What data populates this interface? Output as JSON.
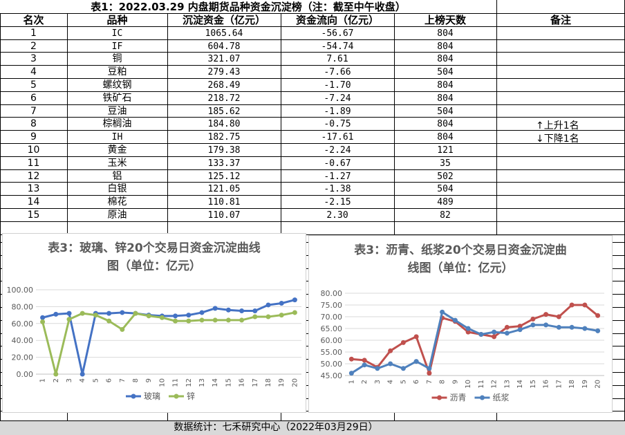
{
  "table": {
    "title": "表1：2022.03.29 内盘期货品种资金沉淀榜（注：截至中午收盘）",
    "headers": [
      "名次",
      "品种",
      "沉淀资金（亿元）",
      "资金流向（亿元）",
      "上榜天数",
      "备注"
    ],
    "rows": [
      {
        "rank": "1",
        "name": "IC",
        "fund": "1065.64",
        "flow": "-56.67",
        "days": "804"
      },
      {
        "rank": "2",
        "name": "IF",
        "fund": "604.78",
        "flow": "-54.74",
        "days": "804"
      },
      {
        "rank": "3",
        "name": "铜",
        "fund": "321.07",
        "flow": "7.61",
        "days": "804"
      },
      {
        "rank": "4",
        "name": "豆粕",
        "fund": "279.43",
        "flow": "-7.66",
        "days": "504"
      },
      {
        "rank": "5",
        "name": "螺纹钢",
        "fund": "268.49",
        "flow": "-1.70",
        "days": "804"
      },
      {
        "rank": "6",
        "name": "铁矿石",
        "fund": "218.72",
        "flow": "-7.24",
        "days": "804"
      },
      {
        "rank": "7",
        "name": "豆油",
        "fund": "185.62",
        "flow": "-1.89",
        "days": "504"
      },
      {
        "rank": "8",
        "name": "棕榈油",
        "fund": "184.80",
        "flow": "-0.75",
        "days": "804"
      },
      {
        "rank": "9",
        "name": "IH",
        "fund": "182.75",
        "flow": "-17.61",
        "days": "804"
      },
      {
        "rank": "10",
        "name": "黄金",
        "fund": "179.38",
        "flow": "-2.24",
        "days": "121"
      },
      {
        "rank": "11",
        "name": "玉米",
        "fund": "133.37",
        "flow": "-0.67",
        "days": "35"
      },
      {
        "rank": "12",
        "name": "铝",
        "fund": "125.12",
        "flow": "-1.27",
        "days": "502"
      },
      {
        "rank": "13",
        "name": "白银",
        "fund": "121.05",
        "flow": "-1.38",
        "days": "504"
      },
      {
        "rank": "14",
        "name": "棉花",
        "fund": "110.81",
        "flow": "-2.15",
        "days": "489"
      },
      {
        "rank": "15",
        "name": "原油",
        "fund": "110.07",
        "flow": "2.30",
        "days": "82"
      }
    ],
    "legend_up": "↑上升1名",
    "legend_down": "↓下降1名"
  },
  "footer": "数据统计：七禾研究中心（2022年03月29日）",
  "chart_data": [
    {
      "type": "line",
      "title_line1": "表3：玻璃、锌20个交易日资金沉淀曲线",
      "title_line2": "图（单位：亿元）",
      "x": [
        "1",
        "2",
        "3",
        "4",
        "5",
        "6",
        "7",
        "8",
        "9",
        "10",
        "11",
        "12",
        "13",
        "14",
        "15",
        "16",
        "17",
        "18",
        "19",
        "20"
      ],
      "ylim": [
        0,
        100
      ],
      "yticks": [
        "0.00",
        "20.00",
        "40.00",
        "60.00",
        "80.00",
        "100.00"
      ],
      "series": [
        {
          "name": "玻璃",
          "color": "#4472c4",
          "values": [
            67,
            71,
            72,
            0,
            72,
            72,
            73,
            72,
            70,
            69,
            69,
            70,
            73,
            78,
            76,
            75,
            75,
            82,
            84,
            88
          ]
        },
        {
          "name": "锌",
          "color": "#9bbb59",
          "values": [
            62,
            0,
            65,
            72,
            70,
            63,
            53,
            72,
            69,
            67,
            63,
            63,
            64,
            64,
            64,
            64,
            68,
            68,
            70,
            73
          ]
        }
      ]
    },
    {
      "type": "line",
      "title_line1": "表3：沥青、纸浆20个交易日资金沉淀曲",
      "title_line2": "线图（单位：亿元）",
      "x": [
        "1",
        "2",
        "3",
        "4",
        "5",
        "6",
        "7",
        "8",
        "9",
        "10",
        "11",
        "12",
        "13",
        "14",
        "15",
        "16",
        "17",
        "18",
        "19",
        "20"
      ],
      "ylim": [
        45,
        80
      ],
      "yticks": [
        "45.00",
        "50.00",
        "55.00",
        "60.00",
        "65.00",
        "70.00",
        "75.00",
        "80.00"
      ],
      "series": [
        {
          "name": "沥青",
          "color": "#c0504d",
          "values": [
            52,
            51.5,
            48.5,
            55.5,
            59,
            61.5,
            46,
            69.5,
            68,
            63.5,
            62.5,
            61.5,
            65.5,
            66,
            69,
            71,
            70,
            75,
            75,
            70.5
          ]
        },
        {
          "name": "纸浆",
          "color": "#4f81bd",
          "values": [
            46,
            49.5,
            48,
            50,
            48,
            51,
            48,
            72,
            68.5,
            65,
            62.5,
            63.5,
            63,
            64.5,
            66.5,
            66.5,
            65.5,
            65.5,
            65,
            64
          ]
        }
      ]
    }
  ]
}
